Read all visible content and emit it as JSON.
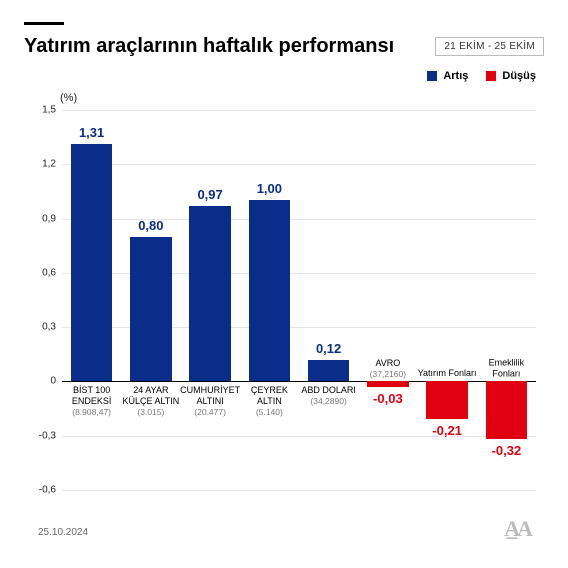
{
  "title": "Yatırım araçlarının haftalık performansı",
  "date_range": "21 EKİM - 25 EKİM",
  "footer_date": "25.10.2024",
  "y_unit": "(%)",
  "legend": {
    "up": {
      "label": "Artış",
      "color": "#0a2d8a"
    },
    "down": {
      "label": "Düşüş",
      "color": "#e00010"
    }
  },
  "chart": {
    "type": "bar",
    "ymin": -0.6,
    "ymax": 1.5,
    "ytick_step": 0.3,
    "grid_color": "#e5e5e5",
    "zero_color": "#000000",
    "bar_width_ratio": 0.7,
    "categories": [
      {
        "name": "BİST 100 ENDEKSİ",
        "sub": "(8.908,47)"
      },
      {
        "name": "24 AYAR KÜLÇE ALTIN",
        "sub": "(3.015)"
      },
      {
        "name": "CUMHURİYET ALTINI",
        "sub": "(20.477)"
      },
      {
        "name": "ÇEYREK ALTIN",
        "sub": "(5.140)"
      },
      {
        "name": "ABD DOLARI",
        "sub": "(34,2890)"
      },
      {
        "name": "AVRO",
        "sub": "(37,2160)"
      },
      {
        "name": "Yatırım Fonları",
        "sub": ""
      },
      {
        "name": "Emeklilik Fonları",
        "sub": ""
      }
    ],
    "values": [
      1.31,
      0.8,
      0.97,
      1.0,
      0.12,
      -0.03,
      -0.21,
      -0.32
    ],
    "value_text": [
      "1,31",
      "0,80",
      "0,97",
      "1,00",
      "0,12",
      "-0,03",
      "-0,21",
      "-0,32"
    ]
  }
}
